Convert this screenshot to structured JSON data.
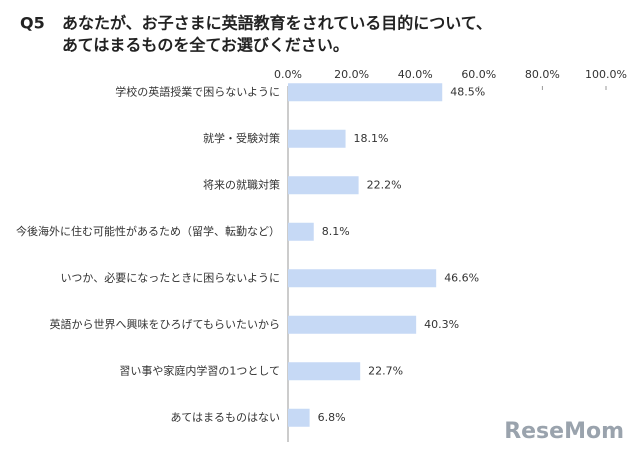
{
  "chart_data": {
    "type": "bar",
    "orientation": "horizontal",
    "question_number": "Q5",
    "title": [
      "あなたが、お子さまに英語教育をされている目的について、",
      "あてはまるものを全てお選びください。"
    ],
    "categories": [
      "学校の英語授業で困らないように",
      "就学・受験対策",
      "将来の就職対策",
      "今後海外に住む可能性があるため（留学、転勤など）",
      "いつか、必要になったときに困らないように",
      "英語から世界へ興味をひろげてもらいたいから",
      "習い事や家庭内学習の1つとして",
      "あてはまるものはない"
    ],
    "values": [
      48.5,
      18.1,
      22.2,
      8.1,
      46.6,
      40.3,
      22.7,
      6.8
    ],
    "value_labels": [
      "48.5%",
      "18.1%",
      "22.2%",
      "8.1%",
      "46.6%",
      "40.3%",
      "22.7%",
      "6.8%"
    ],
    "color": "#c6d9f5",
    "xlim": [
      0,
      100
    ],
    "xticks": [
      {
        "value": 0,
        "label": "0.0%"
      },
      {
        "value": 20,
        "label": "20.0%"
      },
      {
        "value": 40,
        "label": "40.0%"
      },
      {
        "value": 60,
        "label": "60.0%"
      },
      {
        "value": 80,
        "label": "80.0%"
      },
      {
        "value": 100,
        "label": "100.0%"
      }
    ],
    "grid": false,
    "watermark": "ReseMom"
  }
}
